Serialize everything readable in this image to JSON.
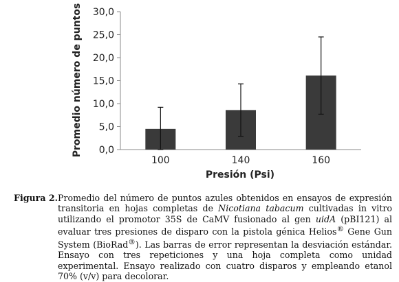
{
  "chart_data": {
    "type": "bar",
    "categories": [
      "100",
      "140",
      "160"
    ],
    "values": [
      4.5,
      8.6,
      16.1
    ],
    "error": [
      4.7,
      5.7,
      8.4
    ],
    "xlabel": "Presión (Psi)",
    "ylabel": "Promedio número de puntos",
    "ylim": [
      0,
      30
    ],
    "yticks": [
      "0,0",
      "5,0",
      "10,0",
      "15,0",
      "20,0",
      "25,0",
      "30,0"
    ],
    "grid": false,
    "bar_color": "#3a3a3a"
  },
  "caption": {
    "label": "Figura 2.",
    "body": "Promedio del número de puntos azules obtenidos en ensayos de expresión transitoria en hojas completas de <i>Nicotiana tabacum</i> cultivadas in vitro utilizando el promotor 35S de CaMV fusionado al gen <i>uidA</i> (pBI121) al evaluar tres presiones de disparo con la pistola génica Helios<sup>®</sup> Gene Gun System (BioRad<sup>®</sup>). Las barras de error representan la desviación estándar. Ensayo con tres repeticiones y una hoja completa como unidad experimental. Ensayo realizado con cuatro disparos y empleando etanol 70% (v/v) para decolorar."
  }
}
